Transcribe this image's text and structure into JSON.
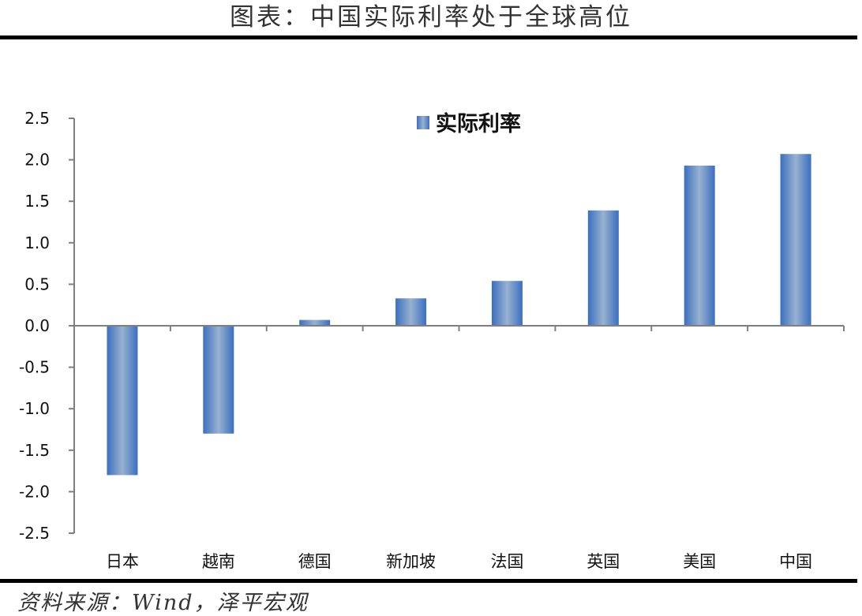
{
  "header": {
    "title": "图表：中国实际利率处于全球高位"
  },
  "footer": {
    "source": "资料来源：Wind，泽平宏观"
  },
  "colors": {
    "bar_edge": "#3a6fc0",
    "bar_center": "#98b2cf",
    "axis": "#7f7f7f",
    "rule": "#000000"
  },
  "chart_data": {
    "type": "bar",
    "title": "图表：中国实际利率处于全球高位",
    "xlabel": "",
    "ylabel": "",
    "categories": [
      "日本",
      "越南",
      "德国",
      "新加坡",
      "法国",
      "英国",
      "美国",
      "中国"
    ],
    "series": [
      {
        "name": "实际利率",
        "values": [
          -1.8,
          -1.3,
          0.07,
          0.33,
          0.54,
          1.39,
          1.93,
          2.07
        ]
      }
    ],
    "ylim": [
      -2.5,
      2.5
    ],
    "yticks": [
      "2.5",
      "2.0",
      "1.5",
      "1.0",
      "0.5",
      "0.0",
      "-0.5",
      "-1.0",
      "-1.5",
      "-2.0",
      "-2.5"
    ],
    "ytick_values": [
      2.5,
      2.0,
      1.5,
      1.0,
      0.5,
      0.0,
      -0.5,
      -1.0,
      -1.5,
      -2.0,
      -2.5
    ],
    "grid": false,
    "legend": {
      "position": "top-center-inside",
      "entries": [
        "实际利率"
      ]
    }
  }
}
